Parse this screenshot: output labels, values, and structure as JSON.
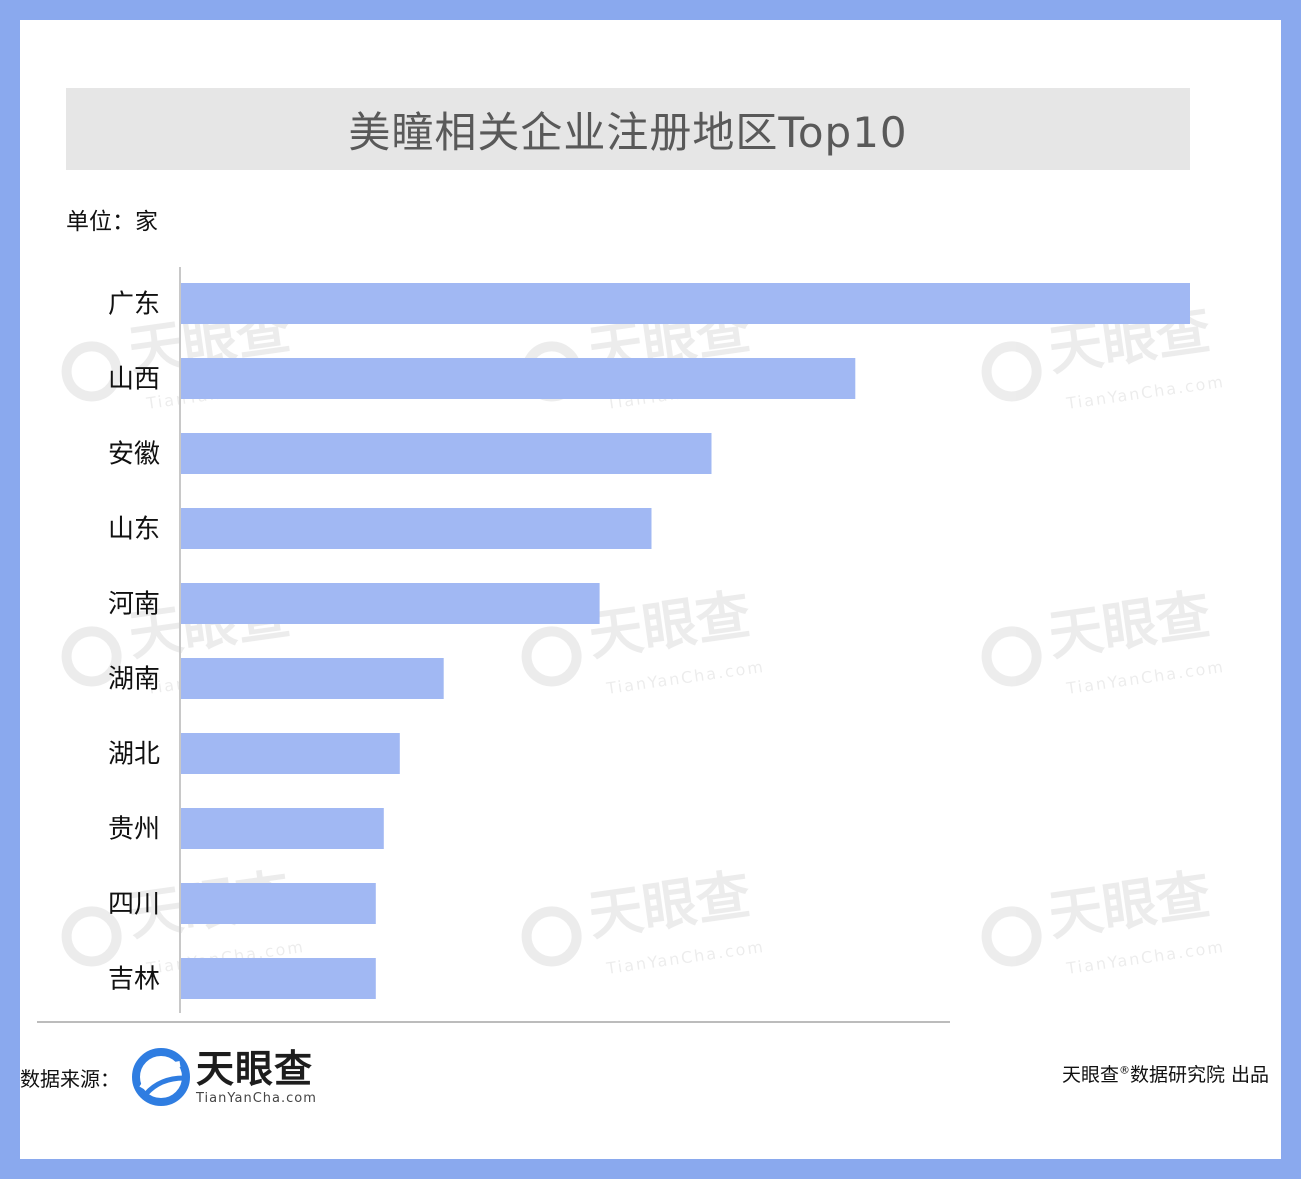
{
  "title": "美瞳相关企业注册地区Top10",
  "unit_label": "单位：家",
  "source_label": "数据来源：",
  "logo": {
    "name": "天眼查",
    "url": "TianYanCha.com"
  },
  "credit": {
    "brand": "天眼查",
    "mark": "®",
    "rest": "数据研究院 出品"
  },
  "watermark": {
    "name": "天眼查",
    "url": "TianYanCha.com"
  },
  "colors": {
    "bar": "#a1b8f3",
    "border": "#8aa9ee",
    "title_bg": "#e6e6e6"
  },
  "chart_data": {
    "type": "bar",
    "orientation": "horizontal",
    "categories": [
      "广东",
      "山西",
      "安徽",
      "山东",
      "河南",
      "湖南",
      "湖北",
      "贵州",
      "四川",
      "吉林"
    ],
    "values": [
      1010,
      675,
      531,
      471,
      419,
      263,
      219,
      203,
      195,
      195
    ],
    "xlim": [
      0,
      1010
    ],
    "grid": false,
    "legend": "none"
  }
}
